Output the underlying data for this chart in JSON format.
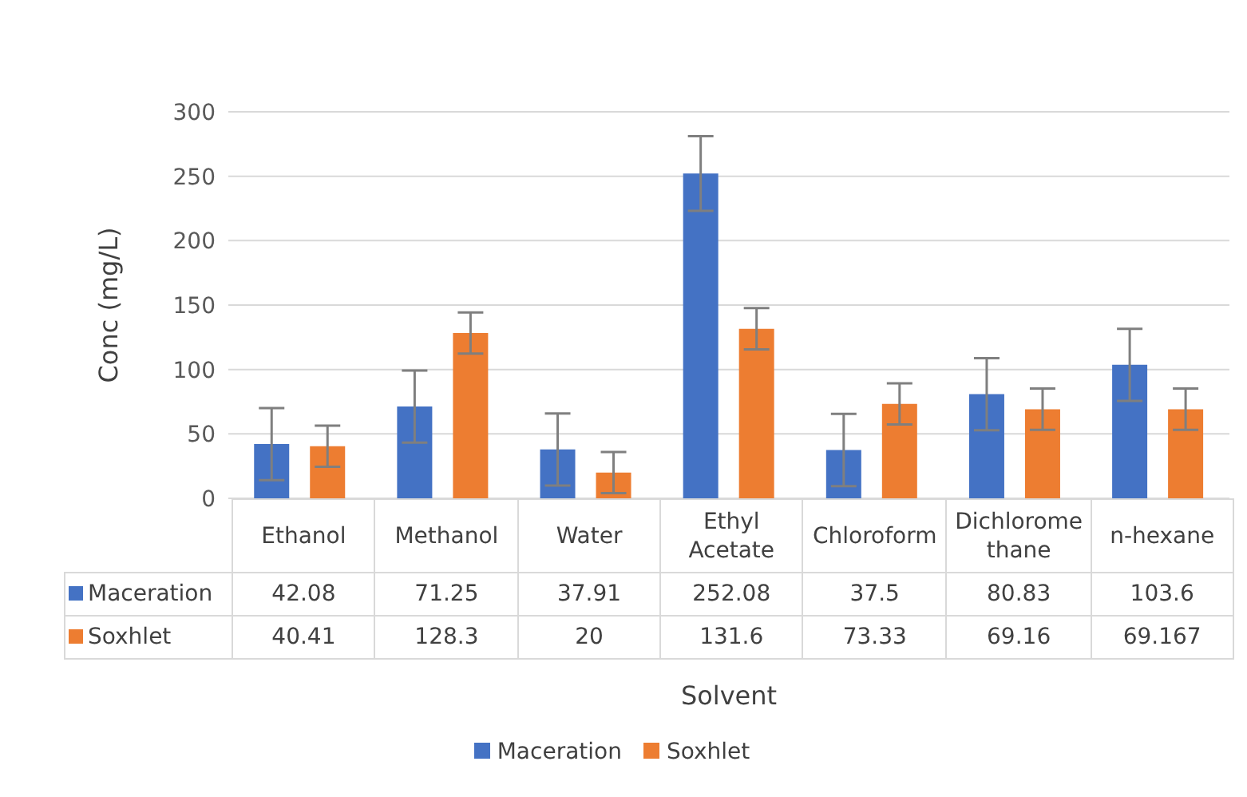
{
  "chart_data": {
    "type": "bar",
    "xlabel": "Solvent",
    "ylabel": "Conc (mg/L)",
    "categories": [
      "Ethanol",
      "Methanol",
      "Water",
      "Ethyl Acetate",
      "Chloroform",
      "Dichlorome thane",
      "n-hexane"
    ],
    "series": [
      {
        "name": "Maceration",
        "color": "#4472c4",
        "values": [
          42.08,
          71.25,
          37.91,
          252.08,
          37.5,
          80.83,
          103.6
        ],
        "errors": [
          28,
          28,
          28,
          29,
          28,
          28,
          28
        ]
      },
      {
        "name": "Soxhlet",
        "color": "#ed7d31",
        "values": [
          40.41,
          128.3,
          20,
          131.6,
          73.33,
          69.16,
          69.167
        ],
        "errors": [
          16,
          16,
          16,
          16,
          16,
          16,
          16
        ]
      }
    ],
    "ylim": [
      0,
      300
    ],
    "yticks": [
      0,
      50,
      100,
      150,
      200,
      250,
      300
    ],
    "grid": "y",
    "legend": "bottom",
    "data_labels": true
  }
}
